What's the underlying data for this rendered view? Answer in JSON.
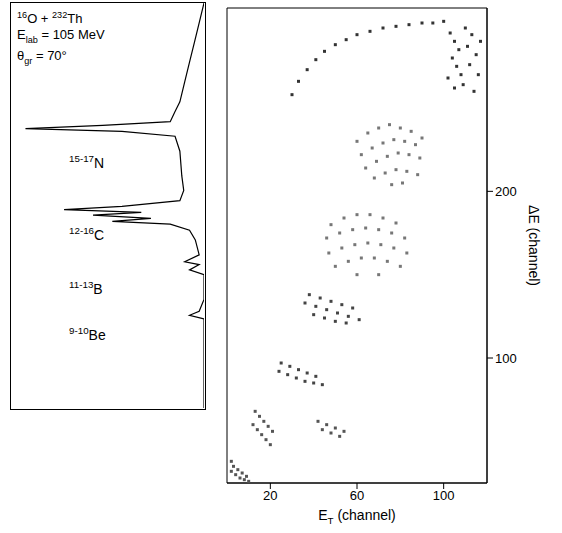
{
  "chart_data": [
    {
      "type": "line",
      "title": "16O + 232Th",
      "subtitles": [
        "Elab = 105 MeV",
        "θgr = 70°"
      ],
      "annotations": [
        "15-17N",
        "12-16C",
        "11-13B",
        "9-10Be"
      ],
      "xlim": [
        200,
        0
      ],
      "ylim": [
        0,
        100
      ],
      "tick_labels": false,
      "series": [
        {
          "color": "#000000",
          "x": [
            0,
            5,
            10,
            15,
            20,
            25,
            30,
            35,
            105,
            185,
            85,
            30,
            25,
            23,
            21,
            25,
            85,
            145,
            65,
            115,
            55,
            95,
            35,
            15,
            9,
            5,
            20,
            5,
            15,
            0,
            0,
            5,
            15,
            0,
            0,
            0
          ],
          "y": [
            100,
            95.1,
            90.2,
            85.4,
            80.5,
            75.6,
            73.2,
            70.7,
            69.8,
            69.0,
            68.3,
            67.1,
            63.4,
            57.3,
            53.7,
            51.2,
            49.8,
            49.0,
            48.3,
            47.6,
            46.8,
            46.1,
            45.4,
            43.9,
            41.5,
            37.8,
            36.1,
            35.4,
            34.1,
            32.9,
            26.8,
            23.9,
            22.9,
            22.0,
            2.4,
            0
          ]
        }
      ]
    },
    {
      "type": "scatter",
      "xlabel": "ET (channel)",
      "ylabel": "ΔE (channel)",
      "xlim": [
        0,
        120
      ],
      "ylim": [
        25,
        310
      ],
      "xticks": [
        20,
        60,
        100
      ],
      "yticks": [
        100,
        200
      ],
      "series": [
        {
          "color": "#333333",
          "x": [
            30,
            33,
            37,
            41,
            45,
            50,
            55,
            60,
            66,
            72,
            78,
            84,
            90,
            95,
            100,
            103,
            105,
            107,
            104,
            106,
            108,
            102,
            105,
            110,
            113,
            111,
            115,
            112,
            116,
            109,
            114,
            117
          ],
          "y": [
            258,
            266,
            273,
            279,
            284,
            288,
            291,
            294,
            296,
            298,
            299,
            300,
            301,
            301,
            302,
            295,
            290,
            285,
            280,
            275,
            270,
            268,
            262,
            298,
            294,
            287,
            282,
            276,
            270,
            264,
            260,
            290
          ]
        },
        {
          "color": "#777777",
          "x": [
            60,
            65,
            70,
            75,
            80,
            85,
            90,
            62,
            67,
            72,
            77,
            82,
            87,
            64,
            69,
            74,
            79,
            84,
            89,
            68,
            73,
            78,
            83,
            88,
            76,
            81
          ],
          "y": [
            230,
            235,
            238,
            240,
            238,
            236,
            232,
            222,
            226,
            229,
            231,
            230,
            228,
            214,
            218,
            221,
            223,
            222,
            220,
            208,
            211,
            213,
            212,
            210,
            204,
            205
          ]
        },
        {
          "color": "#777777",
          "x": [
            48,
            54,
            60,
            66,
            72,
            78,
            46,
            52,
            58,
            64,
            70,
            76,
            82,
            47,
            53,
            59,
            65,
            71,
            77,
            83,
            50,
            56,
            62,
            68,
            74,
            80,
            60,
            70
          ],
          "y": [
            180,
            184,
            186,
            186,
            184,
            181,
            172,
            175,
            177,
            178,
            177,
            175,
            172,
            163,
            166,
            168,
            169,
            168,
            166,
            163,
            155,
            158,
            160,
            160,
            158,
            155,
            150,
            150
          ]
        },
        {
          "color": "#444444",
          "x": [
            38,
            43,
            48,
            53,
            58,
            36,
            41,
            46,
            51,
            56,
            61,
            40,
            45,
            50,
            55
          ],
          "y": [
            138,
            136,
            134,
            132,
            130,
            133,
            131,
            129,
            127,
            125,
            123,
            126,
            124,
            122,
            121
          ]
        },
        {
          "color": "#444444",
          "x": [
            25,
            29,
            33,
            37,
            41,
            24,
            28,
            32,
            36,
            40,
            44
          ],
          "y": [
            97,
            95,
            93,
            91,
            89,
            92,
            90,
            88,
            86,
            85,
            84
          ]
        },
        {
          "color": "#555555",
          "x": [
            13,
            15,
            17,
            19,
            21,
            12,
            14,
            16,
            18,
            20,
            42,
            46,
            50,
            54,
            44,
            48,
            52
          ],
          "y": [
            68,
            65,
            62,
            59,
            56,
            60,
            57,
            54,
            51,
            48,
            62,
            60,
            58,
            56,
            57,
            55,
            53
          ]
        },
        {
          "color": "#555555",
          "x": [
            2,
            3,
            5,
            7,
            9,
            2,
            4,
            6,
            8,
            10
          ],
          "y": [
            38,
            35,
            33,
            31,
            29,
            32,
            30,
            28,
            27,
            26
          ]
        }
      ]
    }
  ]
}
